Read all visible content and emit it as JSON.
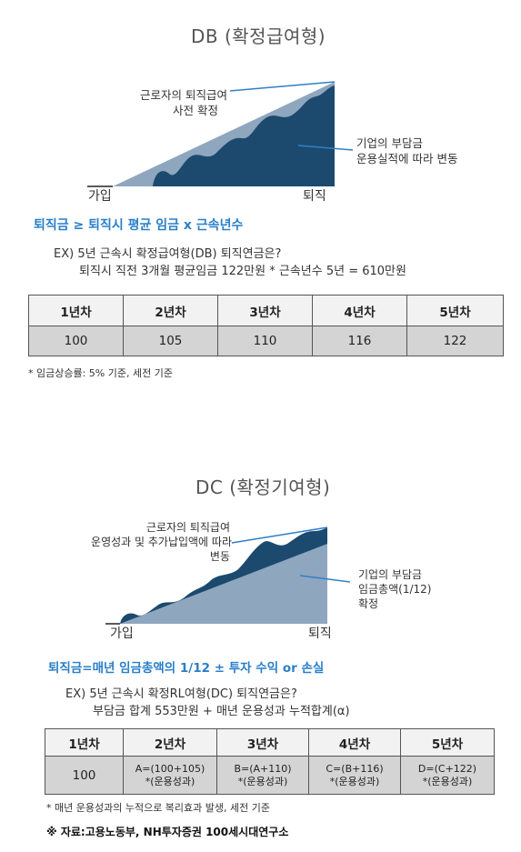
{
  "db": {
    "title": "DB (확정급여형)",
    "label_worker_1": "근로자의 퇴직급여",
    "label_worker_2": "사전 확정",
    "label_company_1": "기업의 부담금",
    "label_company_2": "운용실적에 따라 변동",
    "axis_start": "가입",
    "axis_end": "퇴직",
    "formula": "퇴직금 ≥ 퇴직시 평균 임금 x 근속년수",
    "example_line1": "EX) 5년 근속시 확정급여형(DB) 퇴직연금은?",
    "example_line2": "퇴직시 직전 3개월 평균임금 122만원 * 근속년수 5년 = 610만원",
    "table": {
      "headers": [
        "1년차",
        "2년차",
        "3년차",
        "4년차",
        "5년차"
      ],
      "values": [
        "100",
        "105",
        "110",
        "116",
        "122"
      ]
    },
    "note": "* 임금상승률: 5% 기준, 세전 기준"
  },
  "dc": {
    "title": "DC (확정기여형)",
    "label_worker_1": "근로자의 퇴직급여",
    "label_worker_2": "운영성과 및 추가납입액에 따라",
    "label_worker_3": "변동",
    "label_company_1": "기업의 부담금",
    "label_company_2": "임금총액(1/12)",
    "label_company_3": "확정",
    "axis_start": "가입",
    "axis_end": "퇴직",
    "formula": "퇴직금=매년 임금총액의 1/12 ± 투자 수익 or 손실",
    "example_line1": "EX) 5년 근속시 확정RL여형(DC) 퇴직연금은?",
    "example_line2": "부담금 합계 553만원 + 매년 운용성과 누적합계(α)",
    "table": {
      "headers": [
        "1년차",
        "2년차",
        "3년차",
        "4년차",
        "5년차"
      ],
      "values": [
        {
          "line1": "100",
          "line2": ""
        },
        {
          "line1": "A=(100+105)",
          "line2": "*(운용성과)"
        },
        {
          "line1": "B=(A+110)",
          "line2": "*(운용성과)"
        },
        {
          "line1": "C=(B+116)",
          "line2": "*(운용성과)"
        },
        {
          "line1": "D=(C+122)",
          "line2": "*(운용성과)"
        }
      ]
    },
    "note": "* 매년 운용성과의 누적으로 복리효과 발생, 세전 기준"
  },
  "source": "※ 자료:고용노동부, NH투자증권 100세시대연구소",
  "colors": {
    "navy": "#1c4a6e",
    "light_blue": "#8fa6bf",
    "line_blue": "#2f7fc8",
    "formula_blue": "#2a7fc9",
    "table_header_bg": "#f2f2f2",
    "table_value_bg": "#d4d4d4"
  }
}
